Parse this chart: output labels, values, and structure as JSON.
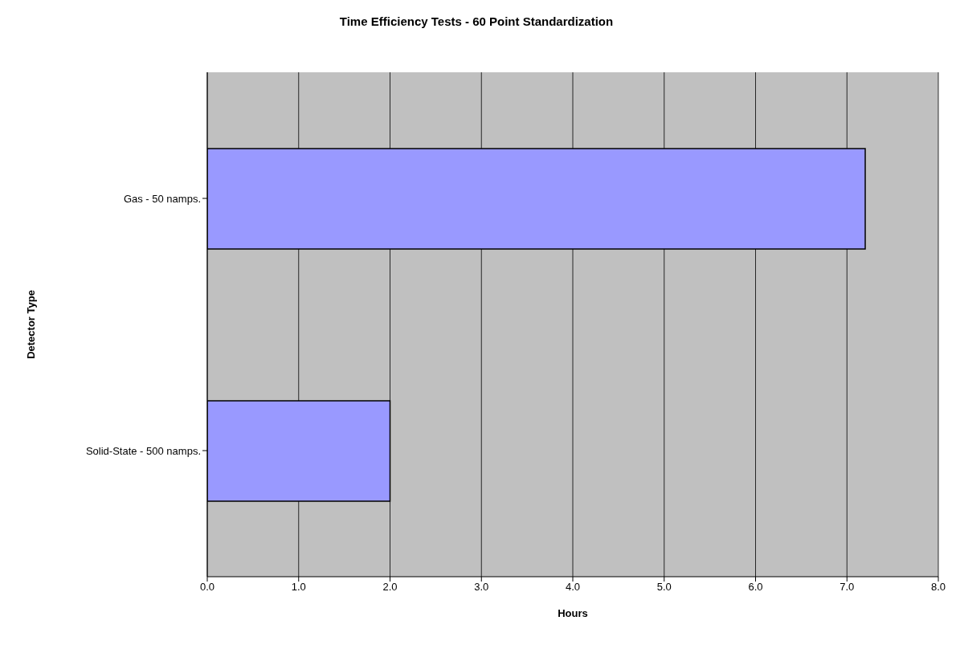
{
  "chart_data": {
    "type": "bar",
    "orientation": "horizontal",
    "title": "Time Efficiency Tests - 60 Point Standardization",
    "xlabel": "Hours",
    "ylabel": "Detector Type",
    "categories": [
      "Gas - 50 namps.",
      "Solid-State - 500 namps."
    ],
    "values": [
      7.2,
      2.0
    ],
    "color": "#9999ff",
    "xlim": [
      0,
      8
    ],
    "xticks": [
      {
        "value": 0,
        "label": "0.0"
      },
      {
        "value": 1,
        "label": "1.0"
      },
      {
        "value": 2,
        "label": "2.0"
      },
      {
        "value": 3,
        "label": "3.0"
      },
      {
        "value": 4,
        "label": "4.0"
      },
      {
        "value": 5,
        "label": "5.0"
      },
      {
        "value": 6,
        "label": "6.0"
      },
      {
        "value": 7,
        "label": "7.0"
      },
      {
        "value": 8,
        "label": "8.0"
      }
    ],
    "grid": "x",
    "legend": false
  }
}
